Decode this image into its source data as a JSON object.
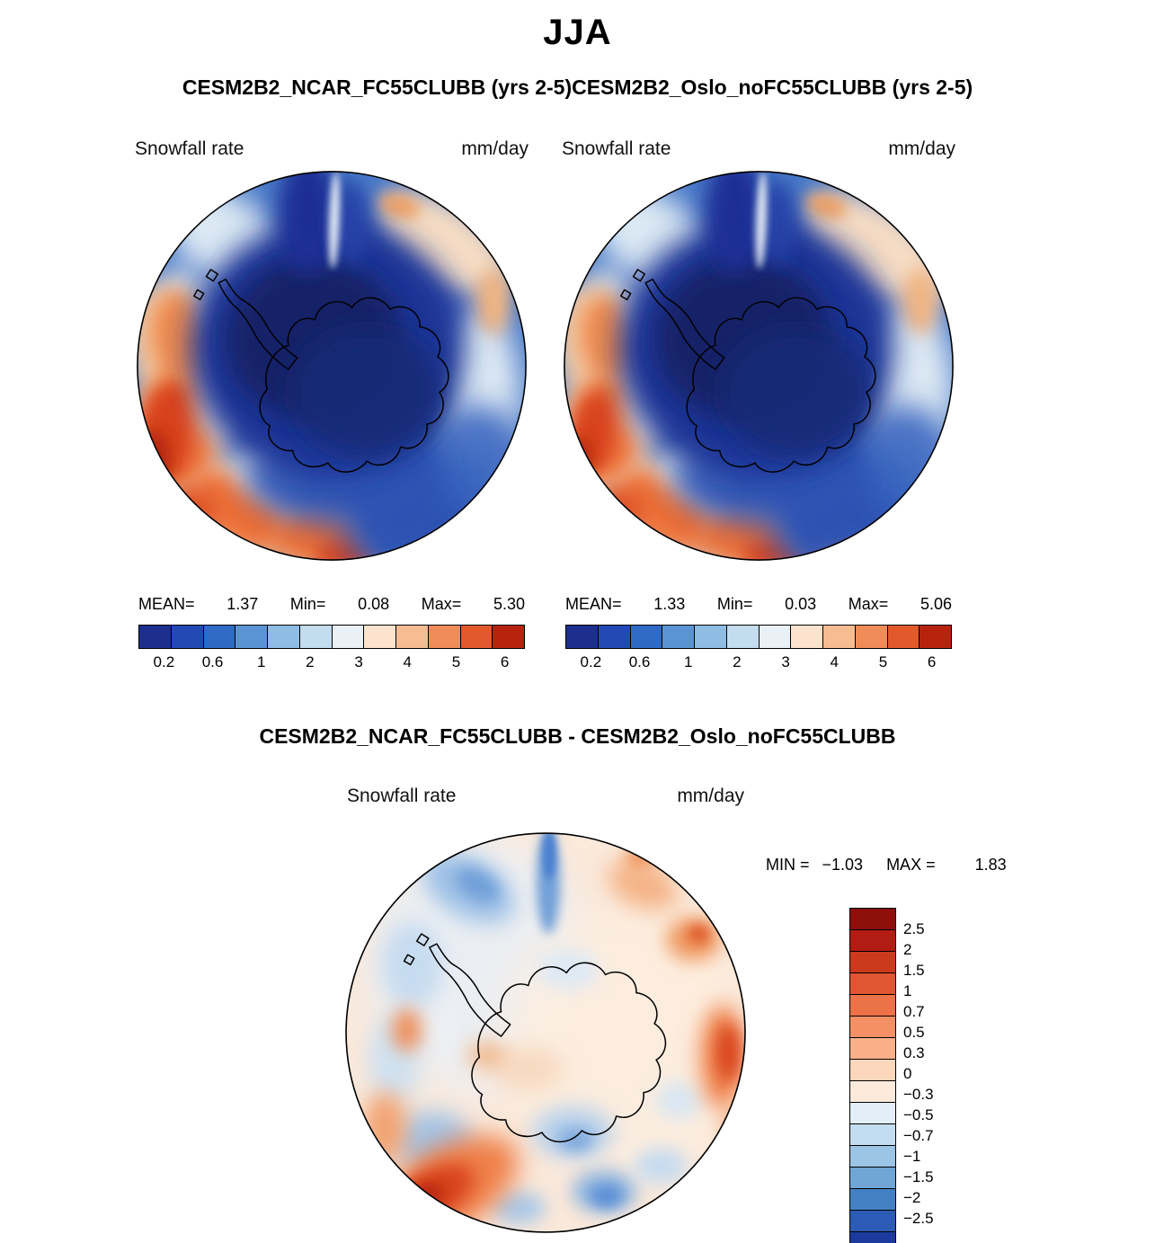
{
  "figure": {
    "season": "JJA",
    "top_row_title": "CESM2B2_NCAR_FC55CLUBB (yrs 2-5)CESM2B2_Oslo_noFC55CLUBB (yrs 2-5)",
    "diff_title": "CESM2B2_NCAR_FC55CLUBB - CESM2B2_Oslo_noFC55CLUBB"
  },
  "panels": {
    "left": {
      "variable": "Snowfall rate",
      "units": "mm/day",
      "stats": {
        "mean_label": "MEAN=",
        "mean": "1.37",
        "min_label": "Min=",
        "min": "0.08",
        "max_label": "Max=",
        "max": "5.30"
      }
    },
    "right": {
      "variable": "Snowfall rate",
      "units": "mm/day",
      "stats": {
        "mean_label": "MEAN=",
        "mean": "1.33",
        "min_label": "Min=",
        "min": "0.03",
        "max_label": "Max=",
        "max": "5.06"
      }
    },
    "diff": {
      "variable": "Snowfall rate",
      "units": "mm/day",
      "min_label": "MIN =",
      "min": "−1.03",
      "max_label": "MAX =",
      "max": "1.83"
    }
  },
  "colorbars": {
    "snowfall": {
      "orientation": "horizontal",
      "colors": [
        "#1c2f8f",
        "#2349b5",
        "#2f6ac6",
        "#5b94d4",
        "#8fbce2",
        "#c3dcee",
        "#e9f1f7",
        "#fbe3cd",
        "#f7bd92",
        "#f08c57",
        "#e25a2b",
        "#b7230f"
      ],
      "ticks": [
        {
          "label": "0.2",
          "pos": 0.066
        },
        {
          "label": "0.6",
          "pos": 0.192
        },
        {
          "label": "1",
          "pos": 0.318
        },
        {
          "label": "2",
          "pos": 0.444
        },
        {
          "label": "3",
          "pos": 0.57
        },
        {
          "label": "4",
          "pos": 0.696
        },
        {
          "label": "5",
          "pos": 0.822
        },
        {
          "label": "6",
          "pos": 0.948
        }
      ]
    },
    "difference": {
      "orientation": "vertical",
      "colors": [
        "#8f0f0b",
        "#b11d12",
        "#cc3a1e",
        "#e05532",
        "#ec7348",
        "#f49063",
        "#f9b088",
        "#fdd7bb",
        "#fdeadb",
        "#e3eef8",
        "#c3dcf0",
        "#9cc4e4",
        "#6fa6d6",
        "#4381c4",
        "#2b5bb4",
        "#1c3a9e"
      ],
      "labels": [
        "2.5",
        "2",
        "1.5",
        "1",
        "0.7",
        "0.5",
        "0.3",
        "0",
        "−0.3",
        "−0.5",
        "−0.7",
        "−1",
        "−1.5",
        "−2",
        "−2.5"
      ]
    }
  },
  "chart_data": [
    {
      "type": "heatmap",
      "title": "Snowfall rate",
      "units": "mm/day",
      "season": "JJA",
      "model": "CESM2B2_NCAR_FC55CLUBB (yrs 2-5)",
      "projection": "antarctic polar stereographic",
      "stats": {
        "mean": 1.37,
        "min": 0.08,
        "max": 5.3
      },
      "levels": [
        0.2,
        0.6,
        1,
        2,
        3,
        4,
        5,
        6
      ],
      "legend_position": "bottom",
      "pattern": "Dark-blue minimum (<0.6 mm/day) over the Antarctic interior; snowfall increases outward through the circumpolar storm track; strong orange-red maximum (4-6 mm/day) over the South Pacific / Amundsen sector (left of disk) and a secondary orange maximum at the bottom edge; pale cream low band along the upper-right rim"
    },
    {
      "type": "heatmap",
      "title": "Snowfall rate",
      "units": "mm/day",
      "season": "JJA",
      "model": "CESM2B2_Oslo_noFC55CLUBB (yrs 2-5)",
      "projection": "antarctic polar stereographic",
      "stats": {
        "mean": 1.33,
        "min": 0.03,
        "max": 5.06
      },
      "levels": [
        0.2,
        0.6,
        1,
        2,
        3,
        4,
        5,
        6
      ],
      "legend_position": "bottom",
      "pattern": "Same spatial structure as NCAR run but with a slightly narrower and weaker Pacific-sector maximum on the left rim"
    },
    {
      "type": "heatmap",
      "title": "Snowfall rate difference",
      "units": "mm/day",
      "season": "JJA",
      "model": "CESM2B2_NCAR_FC55CLUBB - CESM2B2_Oslo_noFC55CLUBB",
      "projection": "antarctic polar stereographic",
      "stats": {
        "min": -1.03,
        "max": 1.83
      },
      "levels": [
        -2.5,
        -2,
        -1.5,
        -1,
        -0.7,
        -0.5,
        -0.3,
        0,
        0.3,
        0.5,
        0.7,
        1,
        1.5,
        2,
        2.5
      ],
      "legend_position": "right",
      "pattern": "Mostly near-zero pale differences; NCAR run wetter (red, up to ~1.8 mm/day) along the lower-left rim and right edge; drier (blue, to ~−1 mm/day) in scattered mid-latitude patches and in a narrow meridional streak at top center"
    }
  ]
}
